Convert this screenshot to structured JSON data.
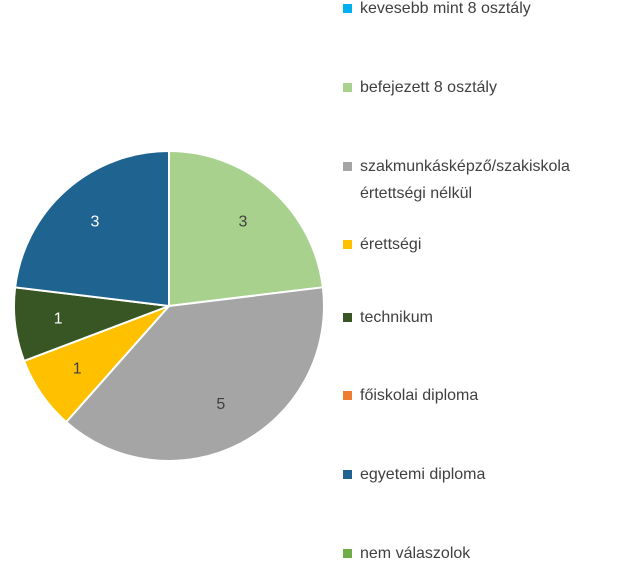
{
  "chart_data": {
    "type": "pie",
    "categories": [
      "kevesebb mint 8 osztály",
      "befejezett 8 osztály",
      "szakmunkásképző/szakiskola értettségi nélkül",
      "érettségi",
      "technikum",
      "főiskolai diploma",
      "egyetemi diploma",
      "nem válaszolok"
    ],
    "values": [
      0,
      3,
      5,
      1,
      1,
      0,
      3,
      0
    ],
    "colors": [
      "#00b0f0",
      "#a9d18e",
      "#a5a5a5",
      "#ffc000",
      "#375623",
      "#ed7d31",
      "#1f6391",
      "#70ad47"
    ],
    "label_colors": [
      "#404040",
      "#404040",
      "#404040",
      "#404040",
      "#ffffff",
      "#404040",
      "#ffffff",
      "#404040"
    ],
    "legend": "right"
  }
}
